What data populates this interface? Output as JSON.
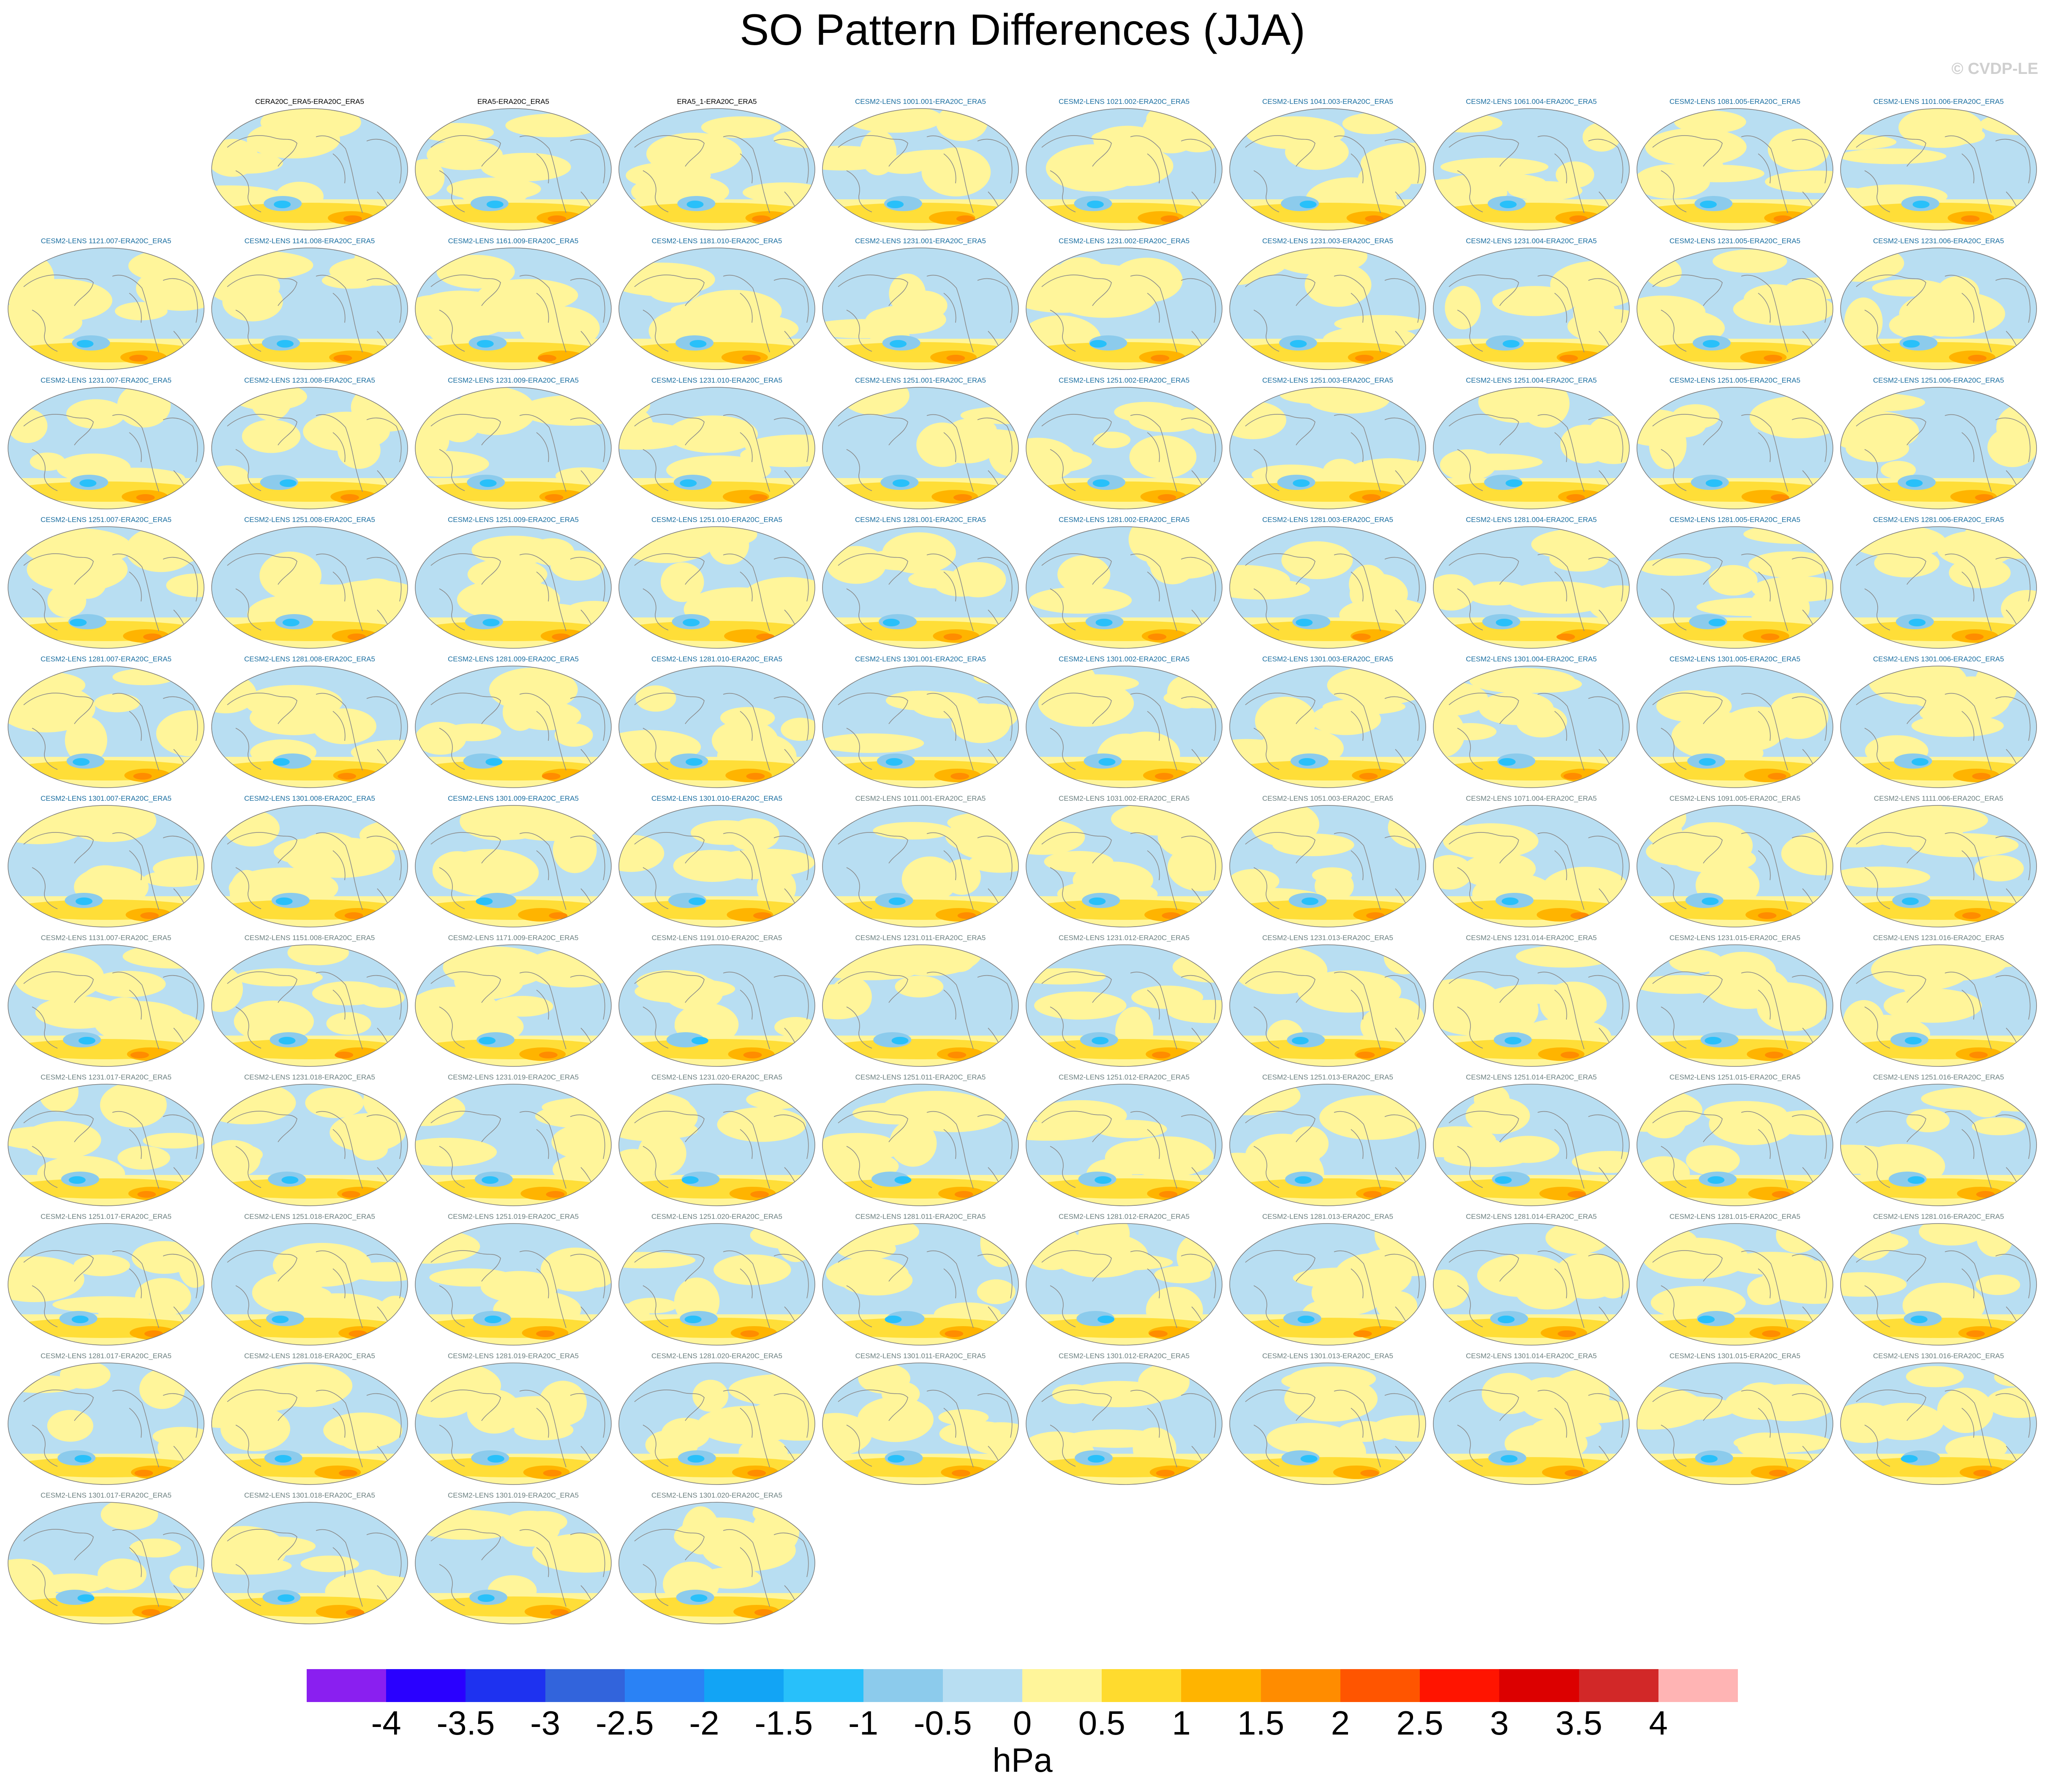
{
  "title": "SO Pattern Differences (JJA)",
  "watermark": "© CVDP-LE",
  "colors": {
    "ocean_neg": "#b8def2",
    "ocean_pos": "#fff59a",
    "coast": "#8a8a8a",
    "label_black": "#000000",
    "label_blue": "#1a6ea0",
    "label_gray": "#6c8080"
  },
  "panels": [
    {
      "label": "CERA20C_ERA5-ERA20C_ERA5",
      "label_color": "black"
    },
    {
      "label": "ERA5-ERA20C_ERA5",
      "label_color": "black"
    },
    {
      "label": "ERA5_1-ERA20C_ERA5",
      "label_color": "black"
    },
    {
      "label": "CESM2-LENS 1001.001-ERA20C_ERA5",
      "label_color": "blue"
    },
    {
      "label": "CESM2-LENS 1021.002-ERA20C_ERA5",
      "label_color": "blue"
    },
    {
      "label": "CESM2-LENS 1041.003-ERA20C_ERA5",
      "label_color": "blue"
    },
    {
      "label": "CESM2-LENS 1061.004-ERA20C_ERA5",
      "label_color": "blue"
    },
    {
      "label": "CESM2-LENS 1081.005-ERA20C_ERA5",
      "label_color": "blue"
    },
    {
      "label": "CESM2-LENS 1101.006-ERA20C_ERA5",
      "label_color": "blue"
    },
    {
      "label": "CESM2-LENS 1121.007-ERA20C_ERA5",
      "label_color": "blue"
    },
    {
      "label": "CESM2-LENS 1141.008-ERA20C_ERA5",
      "label_color": "blue"
    },
    {
      "label": "CESM2-LENS 1161.009-ERA20C_ERA5",
      "label_color": "blue"
    },
    {
      "label": "CESM2-LENS 1181.010-ERA20C_ERA5",
      "label_color": "blue"
    },
    {
      "label": "CESM2-LENS 1231.001-ERA20C_ERA5",
      "label_color": "blue"
    },
    {
      "label": "CESM2-LENS 1231.002-ERA20C_ERA5",
      "label_color": "blue"
    },
    {
      "label": "CESM2-LENS 1231.003-ERA20C_ERA5",
      "label_color": "blue"
    },
    {
      "label": "CESM2-LENS 1231.004-ERA20C_ERA5",
      "label_color": "blue"
    },
    {
      "label": "CESM2-LENS 1231.005-ERA20C_ERA5",
      "label_color": "blue"
    },
    {
      "label": "CESM2-LENS 1231.006-ERA20C_ERA5",
      "label_color": "blue"
    },
    {
      "label": "CESM2-LENS 1231.007-ERA20C_ERA5",
      "label_color": "blue"
    },
    {
      "label": "CESM2-LENS 1231.008-ERA20C_ERA5",
      "label_color": "blue"
    },
    {
      "label": "CESM2-LENS 1231.009-ERA20C_ERA5",
      "label_color": "blue"
    },
    {
      "label": "CESM2-LENS 1231.010-ERA20C_ERA5",
      "label_color": "blue"
    },
    {
      "label": "CESM2-LENS 1251.001-ERA20C_ERA5",
      "label_color": "blue"
    },
    {
      "label": "CESM2-LENS 1251.002-ERA20C_ERA5",
      "label_color": "blue"
    },
    {
      "label": "CESM2-LENS 1251.003-ERA20C_ERA5",
      "label_color": "blue"
    },
    {
      "label": "CESM2-LENS 1251.004-ERA20C_ERA5",
      "label_color": "blue"
    },
    {
      "label": "CESM2-LENS 1251.005-ERA20C_ERA5",
      "label_color": "blue"
    },
    {
      "label": "CESM2-LENS 1251.006-ERA20C_ERA5",
      "label_color": "blue"
    },
    {
      "label": "CESM2-LENS 1251.007-ERA20C_ERA5",
      "label_color": "blue"
    },
    {
      "label": "CESM2-LENS 1251.008-ERA20C_ERA5",
      "label_color": "blue"
    },
    {
      "label": "CESM2-LENS 1251.009-ERA20C_ERA5",
      "label_color": "blue"
    },
    {
      "label": "CESM2-LENS 1251.010-ERA20C_ERA5",
      "label_color": "blue"
    },
    {
      "label": "CESM2-LENS 1281.001-ERA20C_ERA5",
      "label_color": "blue"
    },
    {
      "label": "CESM2-LENS 1281.002-ERA20C_ERA5",
      "label_color": "blue"
    },
    {
      "label": "CESM2-LENS 1281.003-ERA20C_ERA5",
      "label_color": "blue"
    },
    {
      "label": "CESM2-LENS 1281.004-ERA20C_ERA5",
      "label_color": "blue"
    },
    {
      "label": "CESM2-LENS 1281.005-ERA20C_ERA5",
      "label_color": "blue"
    },
    {
      "label": "CESM2-LENS 1281.006-ERA20C_ERA5",
      "label_color": "blue"
    },
    {
      "label": "CESM2-LENS 1281.007-ERA20C_ERA5",
      "label_color": "blue"
    },
    {
      "label": "CESM2-LENS 1281.008-ERA20C_ERA5",
      "label_color": "blue"
    },
    {
      "label": "CESM2-LENS 1281.009-ERA20C_ERA5",
      "label_color": "blue"
    },
    {
      "label": "CESM2-LENS 1281.010-ERA20C_ERA5",
      "label_color": "blue"
    },
    {
      "label": "CESM2-LENS 1301.001-ERA20C_ERA5",
      "label_color": "blue"
    },
    {
      "label": "CESM2-LENS 1301.002-ERA20C_ERA5",
      "label_color": "blue"
    },
    {
      "label": "CESM2-LENS 1301.003-ERA20C_ERA5",
      "label_color": "blue"
    },
    {
      "label": "CESM2-LENS 1301.004-ERA20C_ERA5",
      "label_color": "blue"
    },
    {
      "label": "CESM2-LENS 1301.005-ERA20C_ERA5",
      "label_color": "blue"
    },
    {
      "label": "CESM2-LENS 1301.006-ERA20C_ERA5",
      "label_color": "blue"
    },
    {
      "label": "CESM2-LENS 1301.007-ERA20C_ERA5",
      "label_color": "blue"
    },
    {
      "label": "CESM2-LENS 1301.008-ERA20C_ERA5",
      "label_color": "blue"
    },
    {
      "label": "CESM2-LENS 1301.009-ERA20C_ERA5",
      "label_color": "blue"
    },
    {
      "label": "CESM2-LENS 1301.010-ERA20C_ERA5",
      "label_color": "blue"
    },
    {
      "label": "CESM2-LENS 1011.001-ERA20C_ERA5",
      "label_color": "gray"
    },
    {
      "label": "CESM2-LENS 1031.002-ERA20C_ERA5",
      "label_color": "gray"
    },
    {
      "label": "CESM2-LENS 1051.003-ERA20C_ERA5",
      "label_color": "gray"
    },
    {
      "label": "CESM2-LENS 1071.004-ERA20C_ERA5",
      "label_color": "gray"
    },
    {
      "label": "CESM2-LENS 1091.005-ERA20C_ERA5",
      "label_color": "gray"
    },
    {
      "label": "CESM2-LENS 1111.006-ERA20C_ERA5",
      "label_color": "gray"
    },
    {
      "label": "CESM2-LENS 1131.007-ERA20C_ERA5",
      "label_color": "gray"
    },
    {
      "label": "CESM2-LENS 1151.008-ERA20C_ERA5",
      "label_color": "gray"
    },
    {
      "label": "CESM2-LENS 1171.009-ERA20C_ERA5",
      "label_color": "gray"
    },
    {
      "label": "CESM2-LENS 1191.010-ERA20C_ERA5",
      "label_color": "gray"
    },
    {
      "label": "CESM2-LENS 1231.011-ERA20C_ERA5",
      "label_color": "gray"
    },
    {
      "label": "CESM2-LENS 1231.012-ERA20C_ERA5",
      "label_color": "gray"
    },
    {
      "label": "CESM2-LENS 1231.013-ERA20C_ERA5",
      "label_color": "gray"
    },
    {
      "label": "CESM2-LENS 1231.014-ERA20C_ERA5",
      "label_color": "gray"
    },
    {
      "label": "CESM2-LENS 1231.015-ERA20C_ERA5",
      "label_color": "gray"
    },
    {
      "label": "CESM2-LENS 1231.016-ERA20C_ERA5",
      "label_color": "gray"
    },
    {
      "label": "CESM2-LENS 1231.017-ERA20C_ERA5",
      "label_color": "gray"
    },
    {
      "label": "CESM2-LENS 1231.018-ERA20C_ERA5",
      "label_color": "gray"
    },
    {
      "label": "CESM2-LENS 1231.019-ERA20C_ERA5",
      "label_color": "gray"
    },
    {
      "label": "CESM2-LENS 1231.020-ERA20C_ERA5",
      "label_color": "gray"
    },
    {
      "label": "CESM2-LENS 1251.011-ERA20C_ERA5",
      "label_color": "gray"
    },
    {
      "label": "CESM2-LENS 1251.012-ERA20C_ERA5",
      "label_color": "gray"
    },
    {
      "label": "CESM2-LENS 1251.013-ERA20C_ERA5",
      "label_color": "gray"
    },
    {
      "label": "CESM2-LENS 1251.014-ERA20C_ERA5",
      "label_color": "gray"
    },
    {
      "label": "CESM2-LENS 1251.015-ERA20C_ERA5",
      "label_color": "gray"
    },
    {
      "label": "CESM2-LENS 1251.016-ERA20C_ERA5",
      "label_color": "gray"
    },
    {
      "label": "CESM2-LENS 1251.017-ERA20C_ERA5",
      "label_color": "gray"
    },
    {
      "label": "CESM2-LENS 1251.018-ERA20C_ERA5",
      "label_color": "gray"
    },
    {
      "label": "CESM2-LENS 1251.019-ERA20C_ERA5",
      "label_color": "gray"
    },
    {
      "label": "CESM2-LENS 1251.020-ERA20C_ERA5",
      "label_color": "gray"
    },
    {
      "label": "CESM2-LENS 1281.011-ERA20C_ERA5",
      "label_color": "gray"
    },
    {
      "label": "CESM2-LENS 1281.012-ERA20C_ERA5",
      "label_color": "gray"
    },
    {
      "label": "CESM2-LENS 1281.013-ERA20C_ERA5",
      "label_color": "gray"
    },
    {
      "label": "CESM2-LENS 1281.014-ERA20C_ERA5",
      "label_color": "gray"
    },
    {
      "label": "CESM2-LENS 1281.015-ERA20C_ERA5",
      "label_color": "gray"
    },
    {
      "label": "CESM2-LENS 1281.016-ERA20C_ERA5",
      "label_color": "gray"
    },
    {
      "label": "CESM2-LENS 1281.017-ERA20C_ERA5",
      "label_color": "gray"
    },
    {
      "label": "CESM2-LENS 1281.018-ERA20C_ERA5",
      "label_color": "gray"
    },
    {
      "label": "CESM2-LENS 1281.019-ERA20C_ERA5",
      "label_color": "gray"
    },
    {
      "label": "CESM2-LENS 1281.020-ERA20C_ERA5",
      "label_color": "gray"
    },
    {
      "label": "CESM2-LENS 1301.011-ERA20C_ERA5",
      "label_color": "gray"
    },
    {
      "label": "CESM2-LENS 1301.012-ERA20C_ERA5",
      "label_color": "gray"
    },
    {
      "label": "CESM2-LENS 1301.013-ERA20C_ERA5",
      "label_color": "gray"
    },
    {
      "label": "CESM2-LENS 1301.014-ERA20C_ERA5",
      "label_color": "gray"
    },
    {
      "label": "CESM2-LENS 1301.015-ERA20C_ERA5",
      "label_color": "gray"
    },
    {
      "label": "CESM2-LENS 1301.016-ERA20C_ERA5",
      "label_color": "gray"
    },
    {
      "label": "CESM2-LENS 1301.017-ERA20C_ERA5",
      "label_color": "gray"
    },
    {
      "label": "CESM2-LENS 1301.018-ERA20C_ERA5",
      "label_color": "gray"
    },
    {
      "label": "CESM2-LENS 1301.019-ERA20C_ERA5",
      "label_color": "gray"
    },
    {
      "label": "CESM2-LENS 1301.020-ERA20C_ERA5",
      "label_color": "gray"
    }
  ],
  "colorbar": {
    "unit": "hPa",
    "ticks": [
      "-4",
      "-3.5",
      "-3",
      "-2.5",
      "-2",
      "-1.5",
      "-1",
      "-0.5",
      "0",
      "0.5",
      "1",
      "1.5",
      "2",
      "2.5",
      "3",
      "3.5",
      "4"
    ],
    "colors": [
      "#8a1ff0",
      "#2a00ff",
      "#1e32f0",
      "#3264dc",
      "#2a82f5",
      "#12a4f5",
      "#28c0fa",
      "#8ccbec",
      "#b8def2",
      "#fff59a",
      "#ffdb2e",
      "#ffb400",
      "#ff8c00",
      "#ff5500",
      "#ff1400",
      "#dc0000",
      "#d22828",
      "#ffb4b4"
    ]
  }
}
